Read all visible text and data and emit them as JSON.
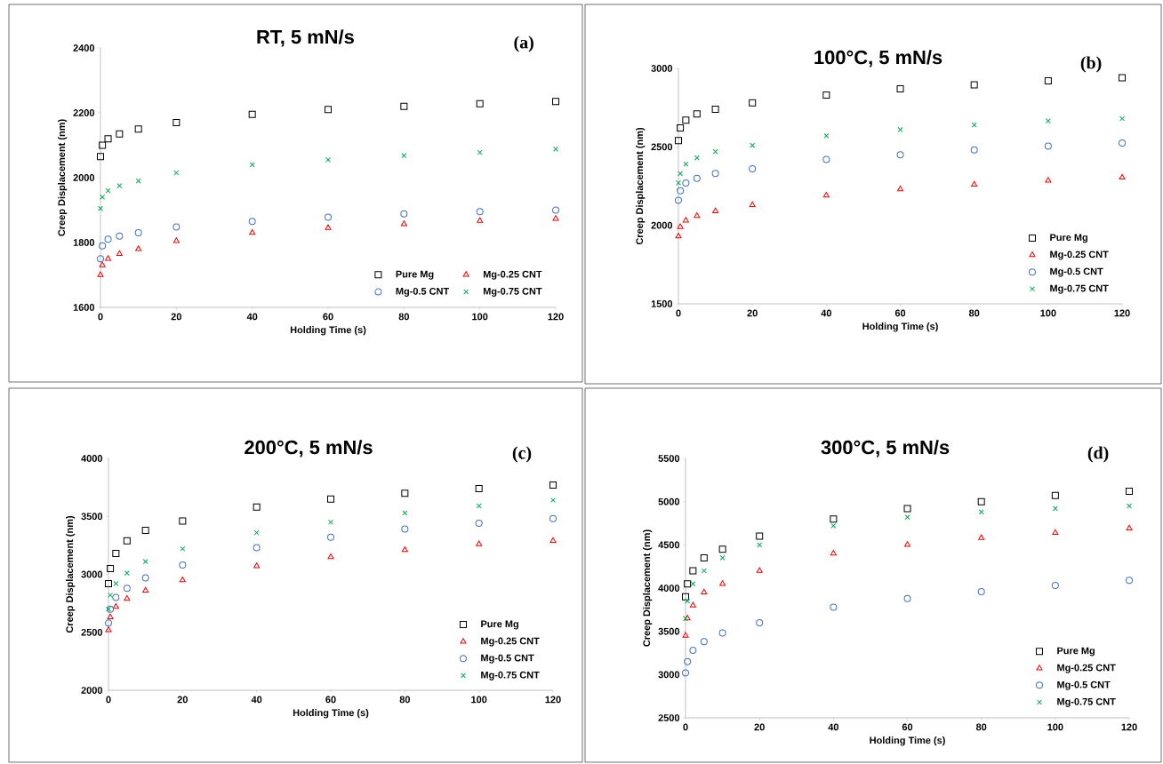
{
  "chart_data": [
    {
      "type": "scatter",
      "title": "RT, 5 mN/s",
      "annotations": [
        "(a)"
      ],
      "xlabel": "Holding Time (s)",
      "ylabel": "Creep Displacement (nm)",
      "x": [
        0,
        0.5,
        2,
        5,
        10,
        20,
        40,
        60,
        80,
        100,
        120
      ],
      "xlim": [
        0,
        120
      ],
      "xticks": [
        0,
        20,
        40,
        60,
        80,
        100,
        120
      ],
      "ylim": [
        1600,
        2400
      ],
      "yticks": [
        1600,
        1800,
        2000,
        2200,
        2400
      ],
      "legend": "bottom right",
      "series": [
        {
          "name": "Pure Mg",
          "color": "#000000",
          "marker": "square",
          "values": [
            2065,
            2100,
            2120,
            2135,
            2150,
            2170,
            2195,
            2210,
            2220,
            2228,
            2235
          ]
        },
        {
          "name": "Mg-0.25 CNT",
          "color": "#ff0000",
          "marker": "triangle",
          "values": [
            1700,
            1730,
            1750,
            1765,
            1780,
            1805,
            1830,
            1845,
            1857,
            1867,
            1873
          ]
        },
        {
          "name": "Mg-0.5 CNT",
          "color": "#4472c4",
          "marker": "circle",
          "values": [
            1750,
            1790,
            1810,
            1820,
            1830,
            1848,
            1865,
            1878,
            1888,
            1895,
            1900
          ]
        },
        {
          "name": "Mg-0.75 CNT",
          "color": "#00b050",
          "marker": "cross",
          "values": [
            1905,
            1940,
            1960,
            1975,
            1990,
            2015,
            2040,
            2055,
            2068,
            2078,
            2088
          ]
        }
      ]
    },
    {
      "type": "scatter",
      "title": "100°C, 5 mN/s",
      "annotations": [
        "(b)"
      ],
      "xlabel": "Holding Time (s)",
      "ylabel": "Creep Displacement (nm)",
      "x": [
        0,
        0.5,
        2,
        5,
        10,
        20,
        40,
        60,
        80,
        100,
        120
      ],
      "xlim": [
        0,
        120
      ],
      "xticks": [
        0,
        20,
        40,
        60,
        80,
        100,
        120
      ],
      "ylim": [
        1500,
        3000
      ],
      "yticks": [
        1500,
        2000,
        2500,
        3000
      ],
      "legend": "bottom right",
      "series": [
        {
          "name": "Pure Mg",
          "color": "#000000",
          "marker": "square",
          "values": [
            2540,
            2620,
            2670,
            2710,
            2740,
            2780,
            2830,
            2870,
            2895,
            2920,
            2940
          ]
        },
        {
          "name": "Mg-0.25 CNT",
          "color": "#ff0000",
          "marker": "triangle",
          "values": [
            1930,
            1990,
            2030,
            2060,
            2090,
            2130,
            2190,
            2230,
            2260,
            2285,
            2305
          ]
        },
        {
          "name": "Mg-0.5 CNT",
          "color": "#4472c4",
          "marker": "circle",
          "values": [
            2160,
            2220,
            2270,
            2300,
            2330,
            2360,
            2420,
            2450,
            2480,
            2505,
            2525
          ]
        },
        {
          "name": "Mg-0.75 CNT",
          "color": "#00b050",
          "marker": "cross",
          "values": [
            2270,
            2330,
            2390,
            2430,
            2470,
            2510,
            2570,
            2610,
            2640,
            2665,
            2680
          ]
        }
      ]
    },
    {
      "type": "scatter",
      "title": "200°C, 5 mN/s",
      "annotations": [
        "(c)"
      ],
      "xlabel": "Holding Time (s)",
      "ylabel": "Creep Displacement (nm)",
      "x": [
        0,
        0.5,
        2,
        5,
        10,
        20,
        40,
        60,
        80,
        100,
        120
      ],
      "xlim": [
        0,
        120
      ],
      "xticks": [
        0,
        20,
        40,
        60,
        80,
        100,
        120
      ],
      "ylim": [
        2000,
        4000
      ],
      "yticks": [
        2000,
        2500,
        3000,
        3500,
        4000
      ],
      "legend": "bottom right",
      "series": [
        {
          "name": "Pure Mg",
          "color": "#000000",
          "marker": "square",
          "values": [
            2920,
            3050,
            3180,
            3290,
            3380,
            3460,
            3580,
            3650,
            3700,
            3740,
            3770
          ]
        },
        {
          "name": "Mg-0.25 CNT",
          "color": "#ff0000",
          "marker": "triangle",
          "values": [
            2520,
            2630,
            2720,
            2790,
            2860,
            2950,
            3070,
            3150,
            3210,
            3260,
            3290
          ]
        },
        {
          "name": "Mg-0.5 CNT",
          "color": "#4472c4",
          "marker": "circle",
          "values": [
            2580,
            2700,
            2800,
            2880,
            2970,
            3080,
            3230,
            3320,
            3390,
            3440,
            3480
          ]
        },
        {
          "name": "Mg-0.75 CNT",
          "color": "#00b050",
          "marker": "cross",
          "values": [
            2700,
            2820,
            2920,
            3010,
            3110,
            3220,
            3360,
            3450,
            3530,
            3590,
            3640
          ]
        }
      ]
    },
    {
      "type": "scatter",
      "title": "300°C, 5 mN/s",
      "annotations": [
        "(d)"
      ],
      "xlabel": "Holding Time (s)",
      "ylabel": "Creep Displacement (nm)",
      "x": [
        0,
        0.5,
        2,
        5,
        10,
        20,
        40,
        60,
        80,
        100,
        120
      ],
      "xlim": [
        0,
        120
      ],
      "xticks": [
        0,
        20,
        40,
        60,
        80,
        100,
        120
      ],
      "ylim": [
        2500,
        5500
      ],
      "yticks": [
        2500,
        3000,
        3500,
        4000,
        4500,
        5000,
        5500
      ],
      "legend": "bottom right",
      "series": [
        {
          "name": "Pure Mg",
          "color": "#000000",
          "marker": "square",
          "values": [
            3900,
            4050,
            4200,
            4350,
            4450,
            4600,
            4800,
            4920,
            5000,
            5070,
            5120
          ]
        },
        {
          "name": "Mg-0.25 CNT",
          "color": "#ff0000",
          "marker": "triangle",
          "values": [
            3450,
            3650,
            3800,
            3950,
            4050,
            4200,
            4400,
            4500,
            4580,
            4640,
            4690
          ]
        },
        {
          "name": "Mg-0.5 CNT",
          "color": "#4472c4",
          "marker": "circle",
          "values": [
            3020,
            3150,
            3280,
            3380,
            3480,
            3600,
            3780,
            3880,
            3960,
            4030,
            4090
          ]
        },
        {
          "name": "Mg-0.75 CNT",
          "color": "#00b050",
          "marker": "cross",
          "values": [
            3650,
            3850,
            4050,
            4200,
            4350,
            4500,
            4720,
            4820,
            4880,
            4920,
            4950
          ]
        }
      ]
    }
  ]
}
